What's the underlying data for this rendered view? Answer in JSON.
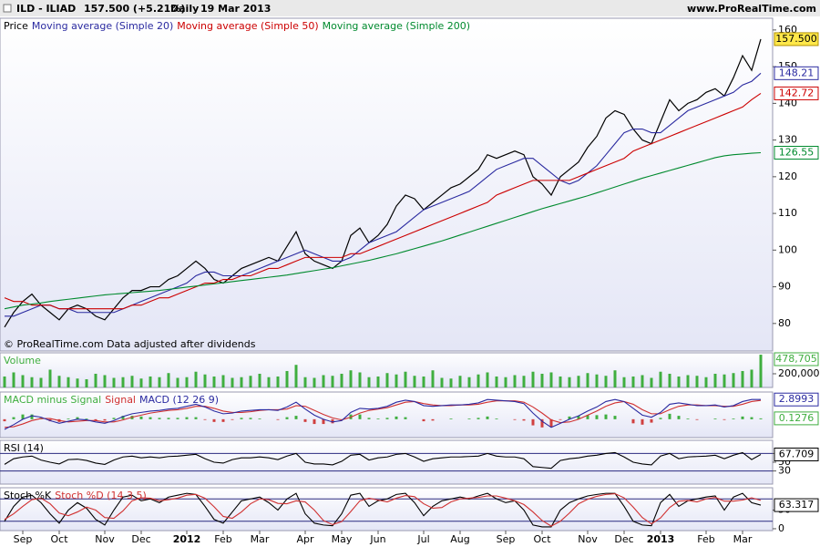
{
  "header": {
    "symbol": "ILD - ILIAD",
    "quote": "157.500 (+5.21%)",
    "period": "Daily",
    "date": "19 Mar 2013",
    "site": "www.ProRealTime.com"
  },
  "chart_data": [
    {
      "type": "line",
      "categories": [
        null,
        null,
        "Sep",
        null,
        null,
        null,
        "Oct",
        null,
        null,
        null,
        null,
        "Nov",
        null,
        null,
        null,
        "Dec",
        null,
        null,
        null,
        null,
        "2012",
        null,
        null,
        null,
        "Feb",
        null,
        null,
        null,
        "Mar",
        null,
        null,
        null,
        null,
        "Apr",
        null,
        null,
        null,
        "May",
        null,
        null,
        null,
        "Jun",
        null,
        null,
        null,
        null,
        "Jul",
        null,
        null,
        null,
        "Aug",
        null,
        null,
        null,
        null,
        "Sep",
        null,
        null,
        null,
        "Oct",
        null,
        null,
        null,
        null,
        "Nov",
        null,
        null,
        null,
        "Dec",
        null,
        null,
        null,
        "2013",
        null,
        null,
        null,
        null,
        "Feb",
        null,
        null,
        null,
        "Mar",
        null,
        null
      ],
      "annotation": "© ProRealTime.com Data adjusted after dividends",
      "ylim": [
        72.5,
        163.2
      ],
      "yticks": [
        80,
        90,
        100,
        110,
        120,
        130,
        140,
        150,
        160
      ],
      "series": [
        {
          "name": "Price",
          "color": "#000000",
          "tag": true,
          "last_value_label": "157.500",
          "values": [
            79,
            83,
            86,
            88,
            85,
            83,
            81,
            84,
            85,
            84,
            82,
            81,
            84,
            87,
            89,
            89,
            90,
            90,
            92,
            93,
            95,
            97,
            95,
            92,
            91,
            93,
            95,
            96,
            97,
            98,
            97,
            101,
            105,
            99,
            97,
            96,
            95,
            97,
            104,
            106,
            102,
            104,
            107,
            112,
            115,
            114,
            111,
            113,
            115,
            117,
            118,
            120,
            122,
            126,
            125,
            126,
            127,
            126,
            120,
            118,
            115,
            120,
            122,
            124,
            128,
            131,
            136,
            138,
            137,
            133,
            130,
            129,
            135,
            141,
            138,
            140,
            141,
            143,
            144,
            142,
            147,
            153,
            149,
            157.5
          ]
        },
        {
          "name": "Moving average (Simple 20)",
          "color": "#2a2aa0",
          "tag": true,
          "values": [
            82,
            82,
            83,
            84,
            85,
            85,
            84,
            84,
            83,
            83,
            83,
            83,
            83,
            84,
            85,
            86,
            87,
            88,
            89,
            90,
            91,
            93,
            94,
            94,
            93,
            93,
            93,
            94,
            95,
            96,
            97,
            98,
            99,
            100,
            99,
            98,
            97,
            97,
            98,
            100,
            102,
            103,
            104,
            105,
            107,
            109,
            111,
            112,
            113,
            114,
            115,
            116,
            118,
            120,
            122,
            123,
            124,
            125,
            125,
            123,
            121,
            119,
            118,
            119,
            121,
            123,
            126,
            129,
            132,
            133,
            133,
            132,
            132,
            134,
            136,
            138,
            139,
            140,
            141,
            142,
            143,
            145,
            146,
            148.21
          ]
        },
        {
          "name": "Moving average (Simple 50)",
          "color": "#cc0000",
          "tag": true,
          "values": [
            87,
            86,
            86,
            85,
            85,
            85,
            84,
            84,
            84,
            84,
            84,
            84,
            84,
            84,
            85,
            85,
            86,
            87,
            87,
            88,
            89,
            90,
            91,
            91,
            92,
            92,
            93,
            93,
            94,
            95,
            95,
            96,
            97,
            98,
            98,
            98,
            98,
            98,
            99,
            99,
            100,
            101,
            102,
            103,
            104,
            105,
            106,
            107,
            108,
            109,
            110,
            111,
            112,
            113,
            115,
            116,
            117,
            118,
            119,
            119,
            119,
            119,
            119,
            120,
            121,
            122,
            123,
            124,
            125,
            127,
            128,
            129,
            130,
            131,
            132,
            133,
            134,
            135,
            136,
            137,
            138,
            139,
            141,
            142.72
          ]
        },
        {
          "name": "Moving average (Simple 200)",
          "color": "#008a2e",
          "tag": true,
          "values": [
            84,
            84.5,
            85,
            85.3,
            85.6,
            86,
            86.3,
            86.6,
            86.9,
            87.2,
            87.5,
            87.8,
            88,
            88.2,
            88.4,
            88.6,
            88.8,
            89,
            89.3,
            89.6,
            89.9,
            90.2,
            90.5,
            90.8,
            91.1,
            91.4,
            91.7,
            92,
            92.3,
            92.6,
            92.9,
            93.2,
            93.6,
            94,
            94.4,
            94.8,
            95.2,
            95.7,
            96.2,
            96.7,
            97.2,
            97.8,
            98.4,
            99,
            99.7,
            100.4,
            101.1,
            101.8,
            102.5,
            103.3,
            104.1,
            104.9,
            105.7,
            106.5,
            107.3,
            108.1,
            108.9,
            109.7,
            110.5,
            111.3,
            112,
            112.7,
            113.4,
            114.1,
            114.8,
            115.6,
            116.4,
            117.2,
            118,
            118.8,
            119.6,
            120.3,
            121,
            121.7,
            122.4,
            123.1,
            123.8,
            124.5,
            125.2,
            125.7,
            126,
            126.2,
            126.4,
            126.55
          ]
        }
      ]
    },
    {
      "type": "bar",
      "ylim": [
        0,
        506000
      ],
      "yticks": [
        {
          "value": 200000,
          "label": "200,000"
        }
      ],
      "series": [
        {
          "name": "Volume",
          "color": "#3fae3f",
          "tag": true,
          "last_value_label": "478,705",
          "values": [
            160000,
            220000,
            180000,
            150000,
            140000,
            260000,
            170000,
            150000,
            130000,
            120000,
            200000,
            180000,
            140000,
            150000,
            170000,
            130000,
            160000,
            150000,
            210000,
            140000,
            150000,
            230000,
            190000,
            160000,
            180000,
            140000,
            150000,
            170000,
            200000,
            150000,
            160000,
            240000,
            330000,
            150000,
            140000,
            180000,
            170000,
            200000,
            250000,
            220000,
            150000,
            160000,
            210000,
            190000,
            230000,
            170000,
            160000,
            250000,
            140000,
            130000,
            170000,
            150000,
            190000,
            220000,
            160000,
            150000,
            180000,
            170000,
            230000,
            200000,
            220000,
            160000,
            150000,
            170000,
            210000,
            190000,
            170000,
            250000,
            150000,
            160000,
            180000,
            140000,
            230000,
            200000,
            160000,
            180000,
            170000,
            150000,
            200000,
            190000,
            210000,
            240000,
            260000,
            478705
          ]
        }
      ]
    },
    {
      "type": "combo",
      "ylim": [
        -2.7,
        4.0
      ],
      "yticks": [],
      "series": [
        {
          "name": "MACD minus Signal",
          "style": "bar",
          "color": "#3fae3f",
          "negative_color": "#d04040",
          "tag": true,
          "values": [
            -0.3,
            0.3,
            0.7,
            0.7,
            0.2,
            -0.3,
            -0.4,
            0.1,
            0.3,
            0.1,
            -0.2,
            -0.2,
            0.2,
            0.5,
            0.5,
            0.4,
            0.3,
            0.2,
            0.2,
            0.2,
            0.3,
            0.3,
            -0.1,
            -0.4,
            -0.4,
            -0.1,
            0.2,
            0.2,
            0.1,
            0,
            -0.1,
            0.3,
            0.5,
            -0.4,
            -0.7,
            -0.7,
            -0.6,
            -0.1,
            0.7,
            0.7,
            0.2,
            0.1,
            0.2,
            0.4,
            0.3,
            0,
            -0.3,
            -0.2,
            0,
            0.1,
            0,
            0.1,
            0.2,
            0.4,
            0.1,
            0,
            -0.1,
            -0.2,
            -0.9,
            -1.2,
            -1.1,
            -0.1,
            0.4,
            0.5,
            0.6,
            0.6,
            0.7,
            0.5,
            0,
            -0.6,
            -0.8,
            -0.5,
            0.2,
            0.8,
            0.5,
            0.1,
            -0.1,
            0,
            0.1,
            -0.1,
            0.1,
            0.4,
            0.3,
            0.1276
          ]
        },
        {
          "name": "Signal",
          "style": "line",
          "color": "#d03030",
          "values": [
            -1.2,
            -1.1,
            -0.7,
            -0.2,
            0.1,
            0.1,
            -0.2,
            -0.4,
            -0.3,
            -0.2,
            -0.2,
            -0.4,
            -0.4,
            -0.1,
            0.3,
            0.6,
            0.9,
            1.1,
            1.3,
            1.4,
            1.6,
            1.9,
            1.9,
            1.6,
            1.2,
            1,
            1,
            1.1,
            1.3,
            1.4,
            1.4,
            1.5,
            2,
            1.9,
            1.3,
            0.7,
            0.2,
            -0.1,
            0.3,
            0.9,
            1.3,
            1.5,
            1.7,
            2.1,
            2.5,
            2.6,
            2.3,
            2.1,
            2,
            2,
            2.1,
            2.1,
            2.2,
            2.5,
            2.7,
            2.7,
            2.7,
            2.5,
            1.8,
            0.9,
            -0.1,
            -0.5,
            -0.4,
            0,
            0.6,
            1.2,
            1.9,
            2.4,
            2.6,
            2.2,
            1.4,
            0.8,
            0.8,
            1.4,
            1.9,
            2.1,
            2.1,
            2,
            2,
            1.9,
            1.9,
            2.2,
            2.6,
            2.7717
          ]
        },
        {
          "name": "MACD (12 26 9)",
          "style": "line",
          "color": "#2a2aa0",
          "tag": true,
          "values": [
            -1.5,
            -0.8,
            0,
            0.5,
            0.3,
            -0.2,
            -0.6,
            -0.3,
            0,
            -0.1,
            -0.4,
            -0.6,
            -0.2,
            0.4,
            0.8,
            1,
            1.2,
            1.3,
            1.5,
            1.6,
            1.9,
            2.2,
            1.8,
            1.2,
            0.8,
            0.9,
            1.2,
            1.3,
            1.4,
            1.4,
            1.3,
            1.8,
            2.5,
            1.5,
            0.6,
            0,
            -0.4,
            -0.2,
            1,
            1.6,
            1.5,
            1.6,
            1.9,
            2.5,
            2.8,
            2.6,
            2,
            1.9,
            2,
            2.1,
            2.1,
            2.2,
            2.4,
            2.9,
            2.8,
            2.7,
            2.6,
            2.3,
            0.9,
            -0.3,
            -1.2,
            -0.6,
            0,
            0.5,
            1.2,
            1.8,
            2.6,
            2.9,
            2.6,
            1.6,
            0.6,
            0.3,
            1,
            2.2,
            2.4,
            2.2,
            2,
            2,
            2.1,
            1.8,
            2,
            2.6,
            2.9,
            2.8993
          ]
        }
      ]
    },
    {
      "type": "line",
      "ylim": [
        0,
        100
      ],
      "yticks": [
        30,
        50,
        70
      ],
      "series": [
        {
          "name": "RSI (14)",
          "color": "#000000",
          "tag": true,
          "values": [
            45,
            58,
            62,
            64,
            55,
            50,
            46,
            56,
            57,
            54,
            48,
            45,
            55,
            62,
            64,
            60,
            62,
            60,
            63,
            64,
            66,
            68,
            58,
            50,
            48,
            56,
            60,
            60,
            62,
            60,
            56,
            64,
            70,
            50,
            46,
            46,
            44,
            52,
            66,
            68,
            55,
            60,
            62,
            68,
            70,
            62,
            52,
            58,
            60,
            62,
            62,
            63,
            64,
            70,
            64,
            62,
            62,
            58,
            40,
            38,
            36,
            54,
            58,
            60,
            64,
            66,
            70,
            72,
            62,
            50,
            46,
            44,
            64,
            70,
            58,
            62,
            63,
            64,
            66,
            58,
            66,
            72,
            56,
            67.709
          ]
        }
      ]
    },
    {
      "type": "line",
      "ylim": [
        -5,
        110
      ],
      "yticks": [
        0,
        50
      ],
      "levels": [
        20,
        80
      ],
      "series": [
        {
          "name": "Stoch %K",
          "color": "#000000",
          "tag": true,
          "values": [
            20,
            60,
            85,
            90,
            70,
            40,
            15,
            50,
            70,
            55,
            25,
            10,
            50,
            85,
            90,
            75,
            80,
            70,
            85,
            90,
            95,
            92,
            60,
            25,
            15,
            45,
            75,
            80,
            85,
            70,
            50,
            80,
            95,
            40,
            15,
            10,
            8,
            40,
            90,
            95,
            60,
            75,
            80,
            92,
            95,
            70,
            35,
            60,
            75,
            80,
            85,
            80,
            88,
            95,
            80,
            70,
            75,
            50,
            10,
            5,
            5,
            50,
            70,
            80,
            88,
            92,
            95,
            95,
            60,
            20,
            10,
            8,
            70,
            92,
            60,
            75,
            80,
            85,
            88,
            50,
            85,
            95,
            70,
            63.317
          ]
        },
        {
          "name": "Stoch %D (14 3 5)",
          "color": "#d03030",
          "values": [
            25,
            40,
            60,
            78,
            82,
            67,
            42,
            35,
            45,
            58,
            50,
            30,
            28,
            48,
            75,
            83,
            82,
            75,
            78,
            82,
            90,
            92,
            82,
            59,
            33,
            28,
            45,
            67,
            80,
            78,
            68,
            67,
            75,
            72,
            50,
            22,
            11,
            19,
            46,
            75,
            82,
            77,
            72,
            82,
            89,
            86,
            67,
            55,
            57,
            72,
            80,
            82,
            84,
            88,
            88,
            82,
            75,
            65,
            45,
            22,
            7,
            20,
            42,
            67,
            79,
            87,
            92,
            94,
            83,
            58,
            30,
            13,
            29,
            57,
            74,
            76,
            72,
            80,
            84,
            74,
            74,
            77,
            83,
            76
          ]
        }
      ]
    }
  ]
}
